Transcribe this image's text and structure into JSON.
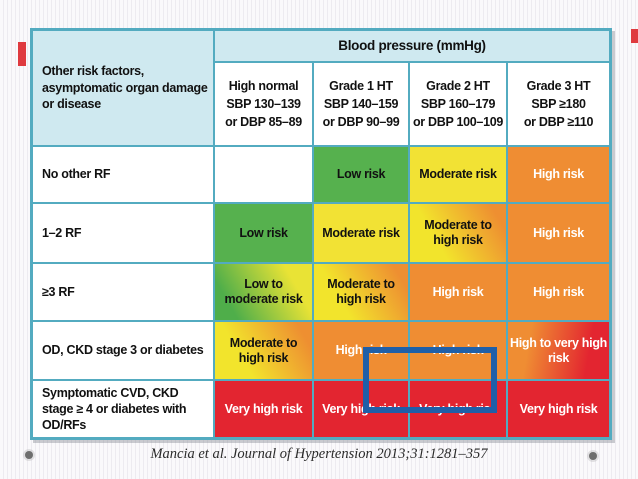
{
  "page": {
    "caption": "Mancia et al. Journal of Hypertension 2013;31:1281–357"
  },
  "table": {
    "corner_header": "Other risk factors, asymptomatic organ damage or disease",
    "group_header": "Blood pressure (mmHg)",
    "column_headers": [
      {
        "title": "High normal",
        "sbp": "SBP 130–139",
        "dbp": "or DBP 85–89"
      },
      {
        "title": "Grade 1 HT",
        "sbp": "SBP 140–159",
        "dbp": "or DBP 90–99"
      },
      {
        "title": "Grade 2 HT",
        "sbp": "SBP 160–179",
        "dbp": "or DBP 100–109"
      },
      {
        "title": "Grade 3 HT",
        "sbp": "SBP ≥180",
        "dbp": "or DBP ≥110"
      }
    ],
    "rows": [
      {
        "label": "No other RF",
        "cells": [
          {
            "text": "",
            "level": "blank"
          },
          {
            "text": "Low risk",
            "level": "low"
          },
          {
            "text": "Moderate risk",
            "level": "moderate"
          },
          {
            "text": "High risk",
            "level": "high"
          }
        ]
      },
      {
        "label": "1–2 RF",
        "cells": [
          {
            "text": "Low risk",
            "level": "low"
          },
          {
            "text": "Moderate risk",
            "level": "moderate"
          },
          {
            "text": "Moderate to high risk",
            "level": "moderate-high"
          },
          {
            "text": "High risk",
            "level": "high"
          }
        ]
      },
      {
        "label": "≥3 RF",
        "cells": [
          {
            "text": "Low to moderate risk",
            "level": "low-moderate"
          },
          {
            "text": "Moderate to high risk",
            "level": "moderate-high"
          },
          {
            "text": "High risk",
            "level": "high"
          },
          {
            "text": "High risk",
            "level": "high"
          }
        ]
      },
      {
        "label": "OD, CKD stage 3 or diabetes",
        "cells": [
          {
            "text": "Moderate to high risk",
            "level": "moderate-high"
          },
          {
            "text": "High risk",
            "level": "high"
          },
          {
            "text": "High risk",
            "level": "high"
          },
          {
            "text": "High to very high risk",
            "level": "high-veryhigh"
          }
        ]
      },
      {
        "label": "Symptomatic CVD, CKD stage ≥ 4 or diabetes with OD/RFs",
        "cells": [
          {
            "text": "Very high risk",
            "level": "very-high"
          },
          {
            "text": "Very high risk",
            "level": "very-high"
          },
          {
            "text": "Very high risk",
            "level": "very-high",
            "highlighted": true
          },
          {
            "text": "Very high risk",
            "level": "very-high"
          }
        ]
      }
    ],
    "annotation": {
      "highlighted_cell": {
        "row": "Symptomatic CVD, CKD stage ≥ 4 or diabetes with OD/RFs",
        "column": "Grade 2 HT"
      }
    }
  },
  "colors": {
    "low_risk": "#56b14e",
    "moderate_risk": "#f2e234",
    "high_risk": "#ef8d33",
    "very_high_risk": "#e32530",
    "header_bg": "#cfe9f0",
    "grid_border": "#53abc0",
    "highlight_box": "#1f5fa8",
    "edge_accent": "#df3a3f"
  },
  "chart_data": {
    "type": "table",
    "title": "Blood pressure (mmHg)",
    "row_header": "Other risk factors, asymptomatic organ damage or disease",
    "columns": [
      "High normal SBP 130–139 or DBP 85–89",
      "Grade 1 HT SBP 140–159 or DBP 90–99",
      "Grade 2 HT SBP 160–179 or DBP 100–109",
      "Grade 3 HT SBP ≥180 or DBP ≥110"
    ],
    "rows": [
      "No other RF",
      "1–2 RF",
      "≥3 RF",
      "OD, CKD stage 3 or diabetes",
      "Symptomatic CVD, CKD stage ≥ 4 or diabetes with OD/RFs"
    ],
    "values": [
      [
        "",
        "Low risk",
        "Moderate risk",
        "High risk"
      ],
      [
        "Low risk",
        "Moderate risk",
        "Moderate to high risk",
        "High risk"
      ],
      [
        "Low to moderate risk",
        "Moderate to high risk",
        "High risk",
        "High risk"
      ],
      [
        "Moderate to high risk",
        "High risk",
        "High risk",
        "High to very high risk"
      ],
      [
        "Very high risk",
        "Very high risk",
        "Very high risk",
        "Very high risk"
      ]
    ],
    "source": "Mancia et al. Journal of Hypertension 2013;31:1281–357"
  }
}
